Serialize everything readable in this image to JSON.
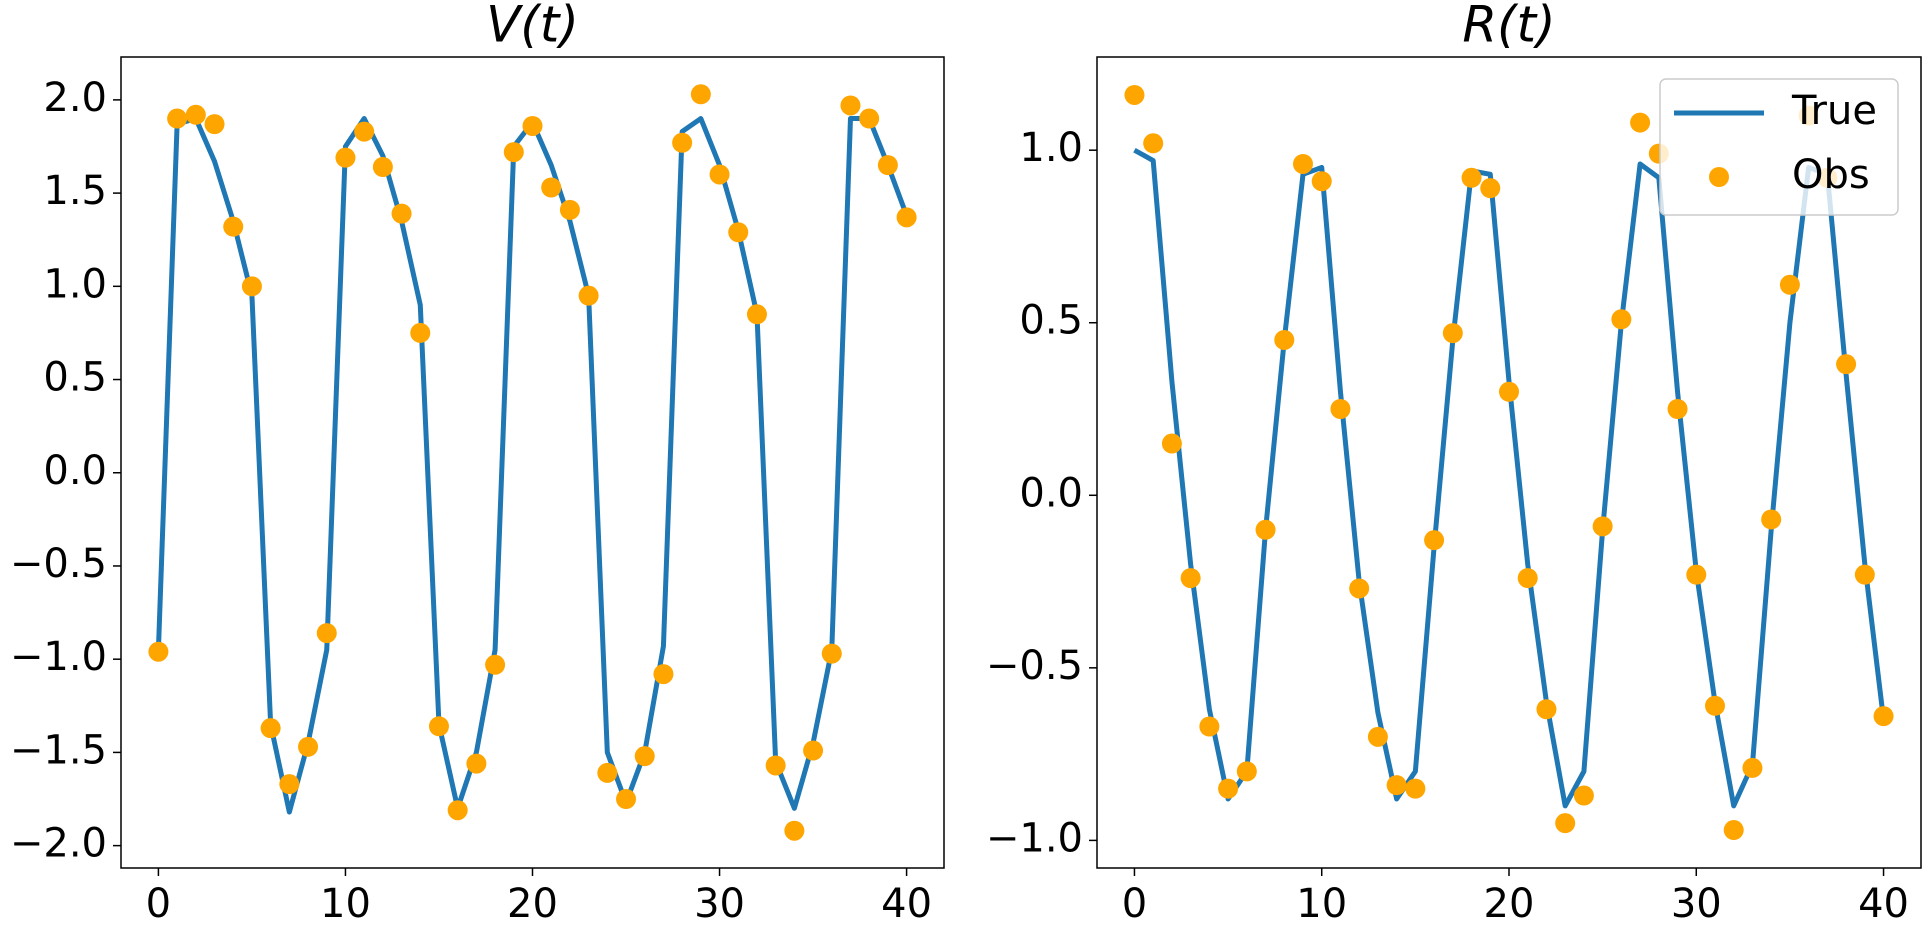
{
  "chart_data": [
    {
      "type": "line",
      "title": "V(t)",
      "x": [
        0,
        1,
        2,
        3,
        4,
        5,
        6,
        7,
        8,
        9,
        10,
        11,
        12,
        13,
        14,
        15,
        16,
        17,
        18,
        19,
        20,
        21,
        22,
        23,
        24,
        25,
        26,
        27,
        28,
        29,
        30,
        31,
        32,
        33,
        34,
        35,
        36,
        37,
        38,
        39,
        40
      ],
      "series": [
        {
          "type": "line",
          "color": "#1f77b4",
          "values": [
            -0.95,
            1.87,
            1.9,
            1.67,
            1.35,
            0.95,
            -1.35,
            -1.82,
            -1.45,
            -0.95,
            1.75,
            1.9,
            1.7,
            1.35,
            0.9,
            -1.35,
            -1.8,
            -1.5,
            -0.95,
            1.75,
            1.88,
            1.65,
            1.35,
            0.95,
            -1.5,
            -1.77,
            -1.5,
            -0.93,
            1.83,
            1.9,
            1.65,
            1.3,
            0.85,
            -1.55,
            -1.8,
            -1.45,
            -0.95,
            1.9,
            1.9,
            1.65,
            1.38
          ]
        },
        {
          "type": "scatter",
          "color": "#ffa500",
          "values": [
            -0.96,
            1.9,
            1.92,
            1.87,
            1.32,
            1.0,
            -1.37,
            -1.67,
            -1.47,
            -0.86,
            1.69,
            1.83,
            1.64,
            1.39,
            0.75,
            -1.36,
            -1.81,
            -1.56,
            -1.03,
            1.72,
            1.86,
            1.53,
            1.41,
            0.95,
            -1.61,
            -1.75,
            -1.52,
            -1.08,
            1.77,
            2.03,
            1.6,
            1.29,
            0.85,
            -1.57,
            -1.92,
            -1.49,
            -0.97,
            1.97,
            1.9,
            1.65,
            1.37
          ]
        }
      ],
      "xlim": [
        -2,
        42
      ],
      "xticks": [
        0,
        10,
        20,
        30,
        40
      ],
      "ylim": [
        -2.12,
        2.23
      ],
      "yticks": [
        {
          "value": -2,
          "label": "−2.0"
        },
        {
          "value": -1.5,
          "label": "−1.5"
        },
        {
          "value": -1,
          "label": "−1.0"
        },
        {
          "value": -0.5,
          "label": "−0.5"
        },
        {
          "value": 0,
          "label": "0.0"
        },
        0.5,
        {
          "value": 1,
          "label": "1.0"
        },
        1.5,
        {
          "value": 2,
          "label": "2.0"
        }
      ]
    },
    {
      "type": "line",
      "title": "R(t)",
      "x": [
        0,
        1,
        2,
        3,
        4,
        5,
        6,
        7,
        8,
        9,
        10,
        11,
        12,
        13,
        14,
        15,
        16,
        17,
        18,
        19,
        20,
        21,
        22,
        23,
        24,
        25,
        26,
        27,
        28,
        29,
        30,
        31,
        32,
        33,
        34,
        35,
        36,
        37,
        38,
        39,
        40
      ],
      "series": [
        {
          "type": "line",
          "name": "True",
          "color": "#1f77b4",
          "values": [
            1.0,
            0.97,
            0.33,
            -0.2,
            -0.62,
            -0.88,
            -0.8,
            -0.1,
            0.45,
            0.93,
            0.95,
            0.3,
            -0.25,
            -0.63,
            -0.88,
            -0.8,
            -0.15,
            0.45,
            0.94,
            0.93,
            0.33,
            -0.2,
            -0.6,
            -0.9,
            -0.8,
            -0.1,
            0.5,
            0.96,
            0.92,
            0.3,
            -0.22,
            -0.6,
            -0.9,
            -0.78,
            -0.1,
            0.5,
            0.95,
            0.93,
            0.35,
            -0.2,
            -0.65
          ]
        },
        {
          "type": "scatter",
          "name": "Obs",
          "color": "#ffa500",
          "values": [
            1.16,
            1.02,
            0.15,
            -0.24,
            -0.67,
            -0.85,
            -0.8,
            -0.1,
            0.45,
            0.96,
            0.91,
            0.25,
            -0.27,
            -0.7,
            -0.84,
            -0.85,
            -0.13,
            0.47,
            0.92,
            0.89,
            0.3,
            -0.24,
            -0.62,
            -0.95,
            -0.87,
            -0.09,
            0.51,
            1.08,
            0.99,
            0.25,
            -0.23,
            -0.61,
            -0.97,
            -0.79,
            -0.07,
            0.61,
            1.1,
            0.92,
            0.38,
            -0.23,
            -0.64
          ]
        }
      ],
      "xlim": [
        -2,
        42
      ],
      "xticks": [
        0,
        10,
        20,
        30,
        40
      ],
      "ylim": [
        -1.08,
        1.27
      ],
      "yticks": [
        {
          "value": -1,
          "label": "−1.0"
        },
        {
          "value": -0.5,
          "label": "−0.5"
        },
        {
          "value": 0,
          "label": "0.0"
        },
        0.5,
        {
          "value": 1,
          "label": "1.0"
        }
      ],
      "legend": "upper right"
    }
  ]
}
